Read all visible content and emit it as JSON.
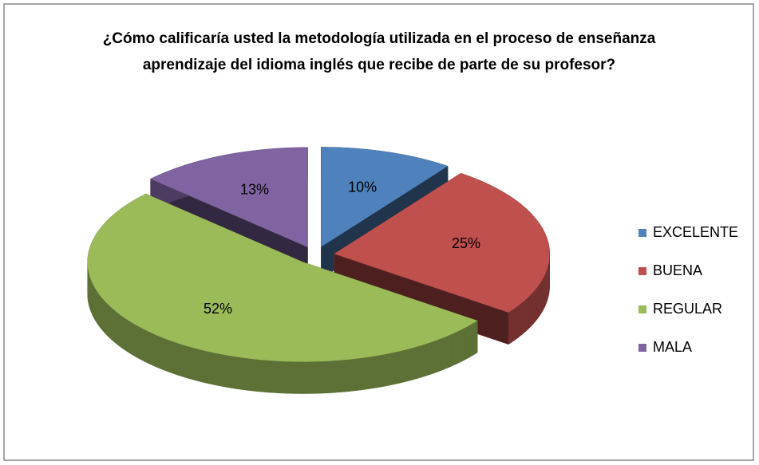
{
  "chart_data": {
    "type": "pie",
    "title": "¿Cómo calificaría usted la metodología utilizada en el proceso de enseñanza aprendizaje del idioma inglés que recibe de parte de su profesor?",
    "categories": [
      "EXCELENTE",
      "BUENA",
      "REGULAR",
      "MALA"
    ],
    "values": [
      10,
      25,
      52,
      13
    ],
    "value_labels": [
      "10%",
      "25%",
      "52%",
      "13%"
    ],
    "colors": [
      "#4f81bd",
      "#c0504d",
      "#9bbb59",
      "#8064a2"
    ],
    "legend": "right"
  }
}
